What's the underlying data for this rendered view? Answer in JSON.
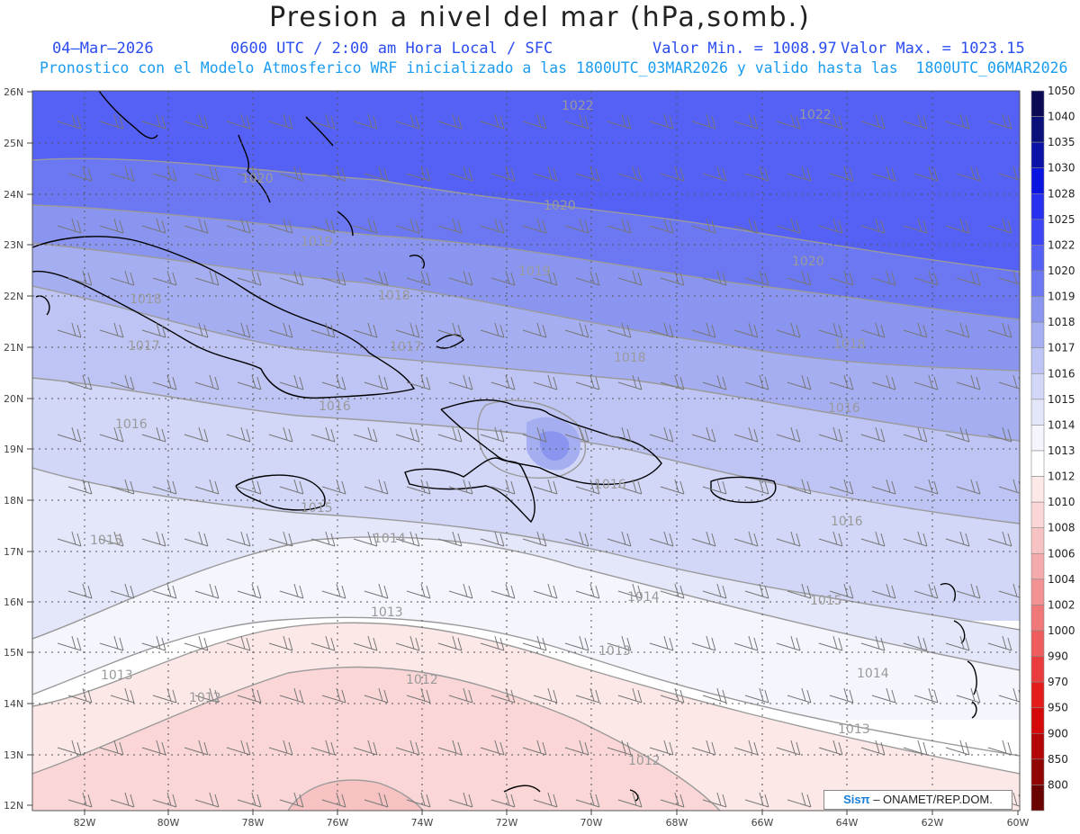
{
  "header": {
    "title": "Presion a nivel del mar (hPa,somb.)",
    "date": "04–Mar–2026",
    "time_label": "0600 UTC / 2:00 am Hora Local / SFC",
    "value_min": "Valor Min. = 1008.97",
    "value_max": "Valor Max. = 1023.15",
    "subtitle": "Pronostico con el Modelo Atmosferico WRF inicializado a las 1800UTC_03MAR2026 y valido hasta las  1800UTC_06MAR2026"
  },
  "map": {
    "lat_labels": [
      "26N",
      "25N",
      "24N",
      "23N",
      "22N",
      "21N",
      "20N",
      "19N",
      "18N",
      "17N",
      "16N",
      "15N",
      "14N",
      "13N",
      "12N"
    ],
    "lon_labels": [
      "82W",
      "80W",
      "78W",
      "76W",
      "74W",
      "72W",
      "70W",
      "68W",
      "66W",
      "64W",
      "62W",
      "60W"
    ],
    "contour_labels": [
      "1022",
      "1022",
      "1020",
      "1020",
      "1020",
      "1019",
      "1019",
      "1018",
      "1018",
      "1018",
      "1018",
      "1017",
      "1017",
      "1016",
      "1016",
      "1016",
      "1016",
      "1016",
      "1015",
      "1015",
      "1015",
      "1014",
      "1014",
      "1014",
      "1013",
      "1013",
      "1013",
      "1013",
      "1012",
      "1012",
      "1012"
    ]
  },
  "legend": {
    "levels": [
      "1050",
      "1040",
      "1035",
      "1030",
      "1028",
      "1025",
      "1022",
      "1020",
      "1019",
      "1018",
      "1017",
      "1016",
      "1015",
      "1014",
      "1013",
      "1012",
      "1010",
      "1008",
      "1006",
      "1004",
      "1002",
      "1000",
      "990",
      "970",
      "950",
      "900",
      "850",
      "800"
    ],
    "colors": [
      "#0a0a55",
      "#0a0f7a",
      "#0a12a8",
      "#0a14e0",
      "#2830f0",
      "#3c46f5",
      "#5560f5",
      "#6c78f2",
      "#8a95f0",
      "#a6aef2",
      "#bec4f4",
      "#d2d6f7",
      "#e4e6fa",
      "#f4f5fd",
      "#ffffff",
      "#fde8e8",
      "#fad6d6",
      "#f7c2c2",
      "#f4aaaa",
      "#f29292",
      "#f07878",
      "#ee5c5c",
      "#ea3c3c",
      "#e41c1c",
      "#d40a0a",
      "#b40606",
      "#900404",
      "#6a0202"
    ]
  },
  "credit": {
    "logo": "Sisπ",
    "text": "– ONAMET/REP.DOM."
  }
}
